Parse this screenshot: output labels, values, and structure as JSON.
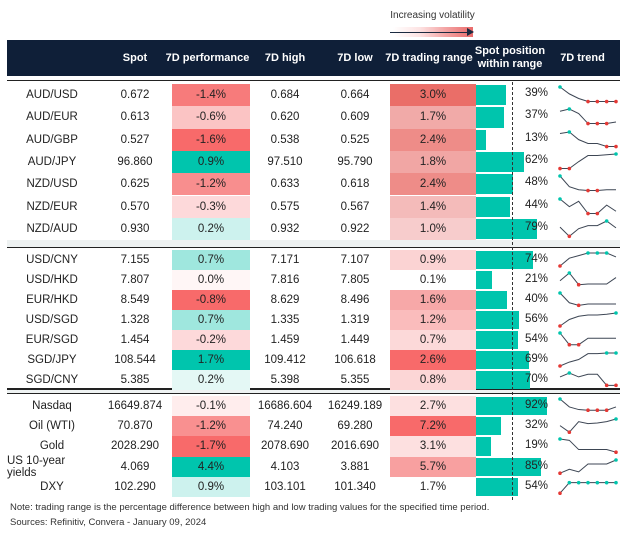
{
  "legend": {
    "label": "Increasing volatility"
  },
  "headers": [
    "Spot",
    "7D performance",
    "7D high",
    "7D low",
    "7D trading range",
    "Spot position within range",
    "7D trend"
  ],
  "colors": {
    "header_bg": "#0f1f38",
    "bar": "#00c5ad",
    "high_marker": "#00c5ad",
    "low_marker": "#e53935"
  },
  "chart_data": {
    "type": "table",
    "groups": [
      [
        {
          "name": "AUD/USD",
          "spot": "0.672",
          "perf": "-1.4%",
          "perf_color": "#f77b7b",
          "high": "0.684",
          "low": "0.664",
          "range": "3.0%",
          "range_color": "#ea6e68",
          "pos": 39,
          "trend": [
            0,
            0.45,
            0.75,
            0.95,
            0.95,
            0.95,
            0.95
          ]
        },
        {
          "name": "AUD/EUR",
          "spot": "0.613",
          "perf": "-0.6%",
          "perf_color": "#fbc4c4",
          "high": "0.620",
          "low": "0.609",
          "range": "1.7%",
          "range_color": "#f1aaa8",
          "pos": 37,
          "trend": [
            0.15,
            0,
            0.3,
            0.95,
            0.95,
            0.95,
            0.85
          ]
        },
        {
          "name": "AUD/GBP",
          "spot": "0.527",
          "perf": "-1.6%",
          "perf_color": "#f86a6a",
          "high": "0.538",
          "low": "0.525",
          "range": "2.4%",
          "range_color": "#ee8c88",
          "pos": 13,
          "trend": [
            0.1,
            0,
            0.5,
            0.75,
            0.75,
            0.95,
            0.95
          ]
        },
        {
          "name": "AUD/JPY",
          "spot": "96.860",
          "perf": "0.9%",
          "perf_color": "#00c5ad",
          "high": "97.510",
          "low": "95.790",
          "range": "1.8%",
          "range_color": "#f1a6a4",
          "pos": 62,
          "trend": [
            0.95,
            0.95,
            0.5,
            0.1,
            0.1,
            0.05,
            0
          ]
        },
        {
          "name": "NZD/USD",
          "spot": "0.625",
          "perf": "-1.2%",
          "perf_color": "#f88e8e",
          "high": "0.633",
          "low": "0.618",
          "range": "2.4%",
          "range_color": "#ee8c88",
          "pos": 48,
          "trend": [
            0,
            0.7,
            0.9,
            0.95,
            0.95,
            0.9,
            0.9
          ]
        },
        {
          "name": "NZD/EUR",
          "spot": "0.570",
          "perf": "-0.3%",
          "perf_color": "#fdd9da",
          "high": "0.575",
          "low": "0.567",
          "range": "1.4%",
          "range_color": "#f4bbba",
          "pos": 44,
          "trend": [
            0,
            0.5,
            0.15,
            0.95,
            0.95,
            0.4,
            0.8
          ]
        },
        {
          "name": "NZD/AUD",
          "spot": "0.930",
          "perf": "0.2%",
          "perf_color": "#cdf2ee",
          "high": "0.932",
          "low": "0.922",
          "range": "1.0%",
          "range_color": "#f7cccc",
          "pos": 79,
          "trend": [
            0.4,
            1,
            0.5,
            0.3,
            0.3,
            0,
            0.45
          ]
        }
      ],
      [
        {
          "name": "USD/CNY",
          "spot": "7.155",
          "perf": "0.7%",
          "perf_color": "#9fe7de",
          "high": "7.171",
          "low": "7.107",
          "range": "0.9%",
          "range_color": "#fbd3d3",
          "pos": 74,
          "trend": [
            1,
            0.4,
            0.2,
            0,
            0,
            0,
            0.3
          ]
        },
        {
          "name": "USD/HKD",
          "spot": "7.807",
          "perf": "0.0%",
          "perf_color": "#fff6f6",
          "high": "7.816",
          "low": "7.805",
          "range": "0.1%",
          "range_color": "#ffffff",
          "pos": 21,
          "trend": [
            0.6,
            0,
            0.9,
            0.85,
            0.85,
            0.85,
            0.35
          ]
        },
        {
          "name": "EUR/HKD",
          "spot": "8.549",
          "perf": "-0.8%",
          "perf_color": "#f86a6a",
          "high": "8.629",
          "low": "8.496",
          "range": "1.6%",
          "range_color": "#f7a8a8",
          "pos": 40,
          "trend": [
            0,
            0.75,
            0.95,
            0.85,
            0.85,
            0.85,
            0.85
          ]
        },
        {
          "name": "USD/SGD",
          "spot": "1.328",
          "perf": "0.7%",
          "perf_color": "#9fe7de",
          "high": "1.335",
          "low": "1.319",
          "range": "1.2%",
          "range_color": "#fabcbc",
          "pos": 56,
          "trend": [
            1,
            0.5,
            0.25,
            0.15,
            0.15,
            0.1,
            0
          ]
        },
        {
          "name": "EUR/SGD",
          "spot": "1.454",
          "perf": "-0.2%",
          "perf_color": "#fdd9da",
          "high": "1.459",
          "low": "1.449",
          "range": "0.7%",
          "range_color": "#fcd9d9",
          "pos": 54,
          "trend": [
            0,
            0.9,
            0.9,
            0.4,
            0.4,
            0.4,
            0.4
          ]
        },
        {
          "name": "SGD/JPY",
          "spot": "108.544",
          "perf": "1.7%",
          "perf_color": "#00c5ad",
          "high": "109.412",
          "low": "106.618",
          "range": "2.6%",
          "range_color": "#f86a6a",
          "pos": 69,
          "trend": [
            1,
            0.7,
            0.5,
            0.05,
            0.05,
            0,
            0
          ]
        },
        {
          "name": "SGD/CNY",
          "spot": "5.385",
          "perf": "0.2%",
          "perf_color": "#e4f8f5",
          "high": "5.398",
          "low": "5.355",
          "range": "0.8%",
          "range_color": "#fcd6d6",
          "pos": 70,
          "trend": [
            0.3,
            0,
            0.3,
            0.1,
            0.1,
            0.95,
            0.95
          ]
        }
      ],
      [
        {
          "name": "Nasdaq",
          "spot": "16649.874",
          "perf": "-0.1%",
          "perf_color": "#ffeded",
          "high": "16686.604",
          "low": "16249.189",
          "range": "2.7%",
          "range_color": "#fde0e0",
          "pos": 92,
          "trend": [
            0,
            0.6,
            0.8,
            0.85,
            0.85,
            0.85,
            0.6
          ]
        },
        {
          "name": "Oil (WTI)",
          "spot": "70.870",
          "perf": "-1.2%",
          "perf_color": "#f99090",
          "high": "74.240",
          "low": "69.280",
          "range": "7.2%",
          "range_color": "#f86a6a",
          "pos": 32,
          "trend": [
            0.5,
            1,
            0.2,
            0.35,
            0.3,
            0.2,
            0
          ]
        },
        {
          "name": "Gold",
          "spot": "2028.290",
          "perf": "-1.7%",
          "perf_color": "#f86a6a",
          "high": "2078.690",
          "low": "2016.690",
          "range": "3.1%",
          "range_color": "#fde0e0",
          "pos": 19,
          "trend": [
            0,
            0.1,
            0.8,
            0.8,
            0.8,
            0.8,
            1
          ]
        },
        {
          "name": "US 10-year yields",
          "spot": "4.069",
          "perf": "4.4%",
          "perf_color": "#00c5ad",
          "high": "4.103",
          "low": "3.881",
          "range": "5.7%",
          "range_color": "#f8a0a0",
          "pos": 85,
          "trend": [
            1,
            0.7,
            0.9,
            0.3,
            0.3,
            0.3,
            0
          ]
        },
        {
          "name": "DXY",
          "spot": "102.290",
          "perf": "0.9%",
          "perf_color": "#cdf2ee",
          "high": "103.101",
          "low": "101.340",
          "range": "1.7%",
          "range_color": "#ffffff",
          "pos": 54,
          "trend": [
            1,
            0.2,
            0.2,
            0.2,
            0.2,
            0.2,
            0.2
          ]
        }
      ]
    ]
  },
  "note": "Note: trading range is the percentage difference between high and low trading values for the specified time period.",
  "sources": "Sources: Refinitiv, Convera - January 09, 2024"
}
